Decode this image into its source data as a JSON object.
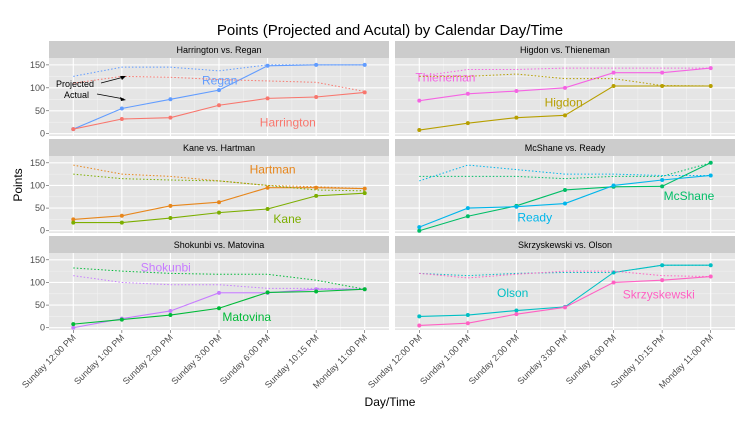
{
  "chart_data": {
    "type": "line",
    "title": "Points (Projected and Acutal) by Calendar Day/Time",
    "xlabel": "Day/Time",
    "ylabel": "Points",
    "x": [
      "Sunday 12:00 PM",
      "Sunday 1:00 PM",
      "Sunday 2:00 PM",
      "Sunday 3:00 PM",
      "Sunday 6:00 PM",
      "Sunday 10:15 PM",
      "Monday 11:00 PM"
    ],
    "ylim": [
      -5,
      165
    ],
    "yticks": [
      0,
      50,
      100,
      150
    ],
    "grid": true,
    "annotations": {
      "projected": "Projected",
      "actual": "Actual"
    },
    "panels": [
      {
        "title": "Harrington vs. Regan",
        "series": [
          {
            "name": "Regan",
            "color": "#619CFF",
            "actual": [
              10,
              55,
              75,
              95,
              148,
              150,
              150
            ],
            "projected": [
              125,
              145,
              145,
              137,
              150,
              150,
              150
            ]
          },
          {
            "name": "Harrington",
            "color": "#F8766D",
            "actual": [
              10,
              32,
              35,
              62,
              77,
              80,
              90
            ],
            "projected": [
              110,
              125,
              123,
              118,
              115,
              112,
              92
            ]
          }
        ]
      },
      {
        "title": "Higdon vs. Thieneman",
        "series": [
          {
            "name": "Thieneman",
            "color": "#F564E3",
            "actual": [
              72,
              87,
              93,
              100,
              133,
              133,
              143
            ],
            "projected": [
              125,
              140,
              140,
              143,
              143,
              143,
              143
            ]
          },
          {
            "name": "Higdon",
            "color": "#B79F00",
            "actual": [
              8,
              23,
              35,
              40,
              104,
              104,
              104
            ],
            "projected": [
              125,
              125,
              130,
              120,
              120,
              105,
              104
            ]
          }
        ]
      },
      {
        "title": "Kane vs. Hartman",
        "series": [
          {
            "name": "Hartman",
            "color": "#E7861B",
            "actual": [
              25,
              33,
              55,
              63,
              95,
              95,
              93
            ],
            "projected": [
              145,
              125,
              120,
              110,
              100,
              97,
              93
            ]
          },
          {
            "name": "Kane",
            "color": "#7CAE00",
            "actual": [
              18,
              18,
              28,
              40,
              48,
              77,
              83
            ],
            "projected": [
              125,
              115,
              112,
              110,
              100,
              90,
              88
            ]
          }
        ]
      },
      {
        "title": "McShane vs. Ready",
        "series": [
          {
            "name": "McShane",
            "color": "#00BE67",
            "actual": [
              0,
              32,
              55,
              90,
              97,
              98,
              150
            ],
            "projected": [
              120,
              120,
              120,
              115,
              120,
              120,
              150
            ]
          },
          {
            "name": "Ready",
            "color": "#00B6EB",
            "actual": [
              8,
              50,
              53,
              60,
              100,
              112,
              122
            ],
            "projected": [
              110,
              145,
              135,
              125,
              125,
              122,
              122
            ]
          }
        ]
      },
      {
        "title": "Shokunbi vs. Matovina",
        "series": [
          {
            "name": "Shokunbi",
            "color": "#C77CFF",
            "actual": [
              0,
              20,
              37,
              77,
              77,
              85,
              85
            ],
            "projected": [
              115,
              100,
              95,
              95,
              87,
              87,
              85
            ]
          },
          {
            "name": "Matovina",
            "color": "#00BA38",
            "actual": [
              8,
              18,
              28,
              43,
              78,
              80,
              85
            ],
            "projected": [
              132,
              125,
              120,
              118,
              118,
              105,
              85
            ]
          }
        ]
      },
      {
        "title": "Skrzyskewski vs. Olson",
        "series": [
          {
            "name": "Olson",
            "color": "#00BFC4",
            "actual": [
              25,
              28,
              38,
              46,
              122,
              138,
              138
            ],
            "projected": [
              120,
              115,
              120,
              122,
              122,
              138,
              138
            ]
          },
          {
            "name": "Skrzyskewski",
            "color": "#FF61C3",
            "actual": [
              5,
              10,
              30,
              45,
              100,
              105,
              113
            ],
            "projected": [
              120,
              110,
              118,
              125,
              125,
              115,
              113
            ]
          }
        ]
      }
    ]
  }
}
